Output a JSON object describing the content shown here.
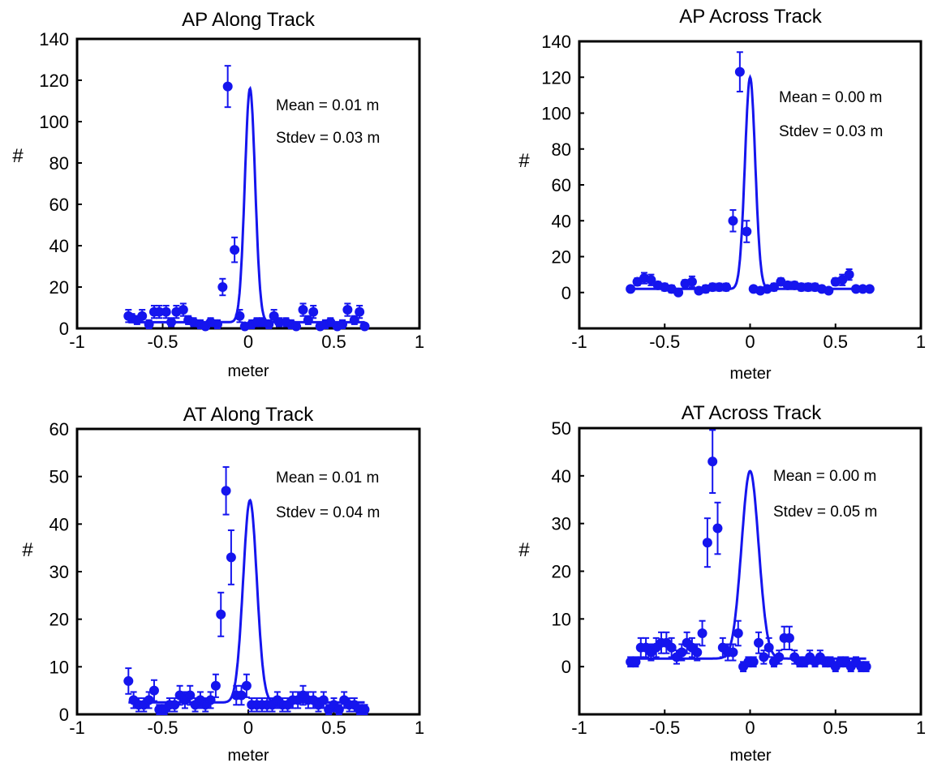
{
  "style": {
    "series_color": "#1515ee",
    "axis_color": "#000000",
    "background": "#ffffff"
  },
  "chart_data": [
    {
      "id": "ap-along",
      "type": "scatter",
      "title": "AP Along Track",
      "xlabel": "meter",
      "ylabel": "#",
      "xlim": [
        -1,
        1
      ],
      "ylim": [
        0,
        140
      ],
      "xticks": [
        -1,
        -0.5,
        0,
        0.5,
        1
      ],
      "xtick_labels": [
        "-1",
        "-0.5",
        "0",
        "0.5",
        "1"
      ],
      "yticks": [
        0,
        20,
        40,
        60,
        80,
        100,
        120,
        140
      ],
      "ytick_labels": [
        "0",
        "20",
        "40",
        "60",
        "80",
        "100",
        "120",
        "140"
      ],
      "annotations": [
        "Mean = 0.01 m",
        "Stdev = 0.03 m"
      ],
      "grid": false,
      "fit": {
        "mean": 0.01,
        "stdev": 0.03,
        "peak": 116,
        "baseline": 3
      },
      "x": [
        -0.7,
        -0.68,
        -0.65,
        -0.62,
        -0.58,
        -0.55,
        -0.52,
        -0.48,
        -0.45,
        -0.42,
        -0.38,
        -0.35,
        -0.32,
        -0.28,
        -0.25,
        -0.22,
        -0.18,
        -0.15,
        -0.12,
        -0.08,
        -0.05,
        -0.02,
        0.02,
        0.05,
        0.08,
        0.12,
        0.15,
        0.18,
        0.22,
        0.25,
        0.28,
        0.32,
        0.35,
        0.38,
        0.42,
        0.45,
        0.48,
        0.52,
        0.55,
        0.58,
        0.62,
        0.65,
        0.68
      ],
      "y": [
        6,
        5,
        4,
        6,
        2,
        8,
        8,
        8,
        3,
        8,
        9,
        4,
        3,
        2,
        1,
        3,
        2,
        20,
        117,
        38,
        6,
        1,
        2,
        3,
        3,
        2,
        6,
        3,
        3,
        2,
        1,
        9,
        4,
        8,
        1,
        2,
        3,
        1,
        2,
        9,
        4,
        8,
        1
      ],
      "errors": [
        3,
        2,
        2,
        3,
        2,
        3,
        3,
        3,
        2,
        3,
        3,
        2,
        2,
        2,
        1,
        2,
        2,
        4,
        10,
        6,
        3,
        1,
        2,
        2,
        2,
        2,
        3,
        2,
        2,
        2,
        1,
        3,
        2,
        3,
        1,
        2,
        2,
        1,
        2,
        3,
        2,
        3,
        1
      ]
    },
    {
      "id": "ap-across",
      "type": "scatter",
      "title": "AP Across Track",
      "xlabel": "meter",
      "ylabel": "#",
      "xlim": [
        -1,
        1
      ],
      "ylim": [
        -20,
        140
      ],
      "xticks": [
        -1,
        -0.5,
        0,
        0.5,
        1
      ],
      "xtick_labels": [
        "-1",
        "-0.5",
        "0",
        "0.5",
        "1"
      ],
      "yticks": [
        0,
        20,
        40,
        60,
        80,
        100,
        120,
        140
      ],
      "ytick_labels": [
        "0",
        "20",
        "40",
        "60",
        "80",
        "100",
        "120",
        "140"
      ],
      "annotations": [
        "Mean = 0.00 m",
        "Stdev = 0.03 m"
      ],
      "grid": false,
      "fit": {
        "mean": 0.0,
        "stdev": 0.03,
        "peak": 120,
        "baseline": 2
      },
      "x": [
        -0.7,
        -0.66,
        -0.62,
        -0.58,
        -0.54,
        -0.5,
        -0.46,
        -0.42,
        -0.38,
        -0.34,
        -0.3,
        -0.26,
        -0.22,
        -0.18,
        -0.14,
        -0.1,
        -0.06,
        -0.02,
        0.02,
        0.06,
        0.1,
        0.14,
        0.18,
        0.22,
        0.26,
        0.3,
        0.34,
        0.38,
        0.42,
        0.46,
        0.5,
        0.54,
        0.58,
        0.62,
        0.66,
        0.7
      ],
      "y": [
        2,
        6,
        8,
        7,
        4,
        3,
        2,
        0,
        5,
        6,
        1,
        2,
        3,
        3,
        3,
        40,
        123,
        34,
        2,
        1,
        2,
        3,
        6,
        4,
        4,
        3,
        3,
        3,
        2,
        1,
        6,
        7,
        10,
        2,
        2,
        2
      ],
      "errors": [
        1,
        2,
        3,
        3,
        2,
        2,
        2,
        1,
        2,
        3,
        1,
        2,
        2,
        2,
        2,
        6,
        11,
        6,
        1,
        1,
        1,
        2,
        2,
        2,
        2,
        2,
        2,
        2,
        1,
        1,
        2,
        3,
        3,
        1,
        1,
        1
      ]
    },
    {
      "id": "at-along",
      "type": "scatter",
      "title": "AT Along Track",
      "xlabel": "meter",
      "ylabel": "#",
      "xlim": [
        -1,
        1
      ],
      "ylim": [
        0,
        60
      ],
      "xticks": [
        -1,
        -0.5,
        0,
        0.5,
        1
      ],
      "xtick_labels": [
        "-1",
        "-0.5",
        "0",
        "0.5",
        "1"
      ],
      "yticks": [
        0,
        10,
        20,
        30,
        40,
        50,
        60
      ],
      "ytick_labels": [
        "0",
        "10",
        "20",
        "30",
        "40",
        "50",
        "60"
      ],
      "annotations": [
        "Mean = 0.01 m",
        "Stdev = 0.04 m"
      ],
      "grid": false,
      "fit": {
        "mean": 0.01,
        "stdev": 0.04,
        "peak": 45,
        "baseline": 2.5
      },
      "x": [
        -0.7,
        -0.67,
        -0.64,
        -0.61,
        -0.58,
        -0.55,
        -0.52,
        -0.49,
        -0.46,
        -0.43,
        -0.4,
        -0.37,
        -0.34,
        -0.31,
        -0.28,
        -0.25,
        -0.22,
        -0.19,
        -0.16,
        -0.13,
        -0.1,
        -0.07,
        -0.04,
        -0.01,
        0.02,
        0.05,
        0.08,
        0.11,
        0.14,
        0.17,
        0.2,
        0.23,
        0.26,
        0.29,
        0.32,
        0.35,
        0.38,
        0.41,
        0.44,
        0.47,
        0.5,
        0.53,
        0.56,
        0.59,
        0.62,
        0.65,
        0.68
      ],
      "y": [
        7,
        3,
        2,
        2,
        3,
        5,
        1,
        1,
        2,
        2,
        4,
        3,
        4,
        2,
        3,
        2,
        3,
        6,
        21,
        47,
        33,
        4,
        4,
        6,
        2,
        2,
        2,
        2,
        2,
        3,
        2,
        2,
        3,
        3,
        4,
        3,
        3,
        2,
        3,
        1,
        2,
        1,
        3,
        2,
        2,
        1,
        1
      ],
      "errors": [
        2.7,
        1.7,
        1.4,
        1.4,
        1.7,
        2.2,
        1,
        1,
        1.4,
        1.4,
        2,
        1.7,
        2,
        1.4,
        1.7,
        1.4,
        1.7,
        2.4,
        4.6,
        5,
        5.7,
        2,
        2,
        2.4,
        1.4,
        1.4,
        1.4,
        1.4,
        1.4,
        1.7,
        1.4,
        1.4,
        1.7,
        1.7,
        2,
        1.7,
        1.7,
        1.4,
        1.7,
        1,
        1.4,
        1,
        1.7,
        1.4,
        1.4,
        1,
        1
      ]
    },
    {
      "id": "at-across",
      "type": "scatter",
      "title": "AT Across Track",
      "xlabel": "meter",
      "ylabel": "#",
      "xlim": [
        -1,
        1
      ],
      "ylim": [
        -10,
        50
      ],
      "xticks": [
        -1,
        -0.5,
        0,
        0.5,
        1
      ],
      "xtick_labels": [
        "-1",
        "-0.5",
        "0",
        "0.5",
        "1"
      ],
      "yticks": [
        0,
        10,
        20,
        30,
        40,
        50
      ],
      "ytick_labels": [
        "0",
        "10",
        "20",
        "30",
        "40",
        "50"
      ],
      "annotations": [
        "Mean = 0.00 m",
        "Stdev = 0.05 m"
      ],
      "grid": false,
      "fit": {
        "mean": 0.0,
        "stdev": 0.05,
        "peak": 41,
        "baseline": 1.7
      },
      "x": [
        -0.7,
        -0.67,
        -0.64,
        -0.61,
        -0.58,
        -0.55,
        -0.52,
        -0.49,
        -0.46,
        -0.43,
        -0.4,
        -0.37,
        -0.34,
        -0.31,
        -0.28,
        -0.25,
        -0.22,
        -0.19,
        -0.16,
        -0.13,
        -0.1,
        -0.07,
        -0.04,
        -0.01,
        0.02,
        0.05,
        0.08,
        0.11,
        0.14,
        0.17,
        0.2,
        0.23,
        0.26,
        0.29,
        0.32,
        0.35,
        0.38,
        0.41,
        0.44,
        0.47,
        0.5,
        0.53,
        0.56,
        0.59,
        0.62,
        0.65,
        0.68
      ],
      "y": [
        1,
        1,
        4,
        4,
        3,
        4,
        5,
        5,
        4,
        2,
        3,
        5,
        4,
        3,
        7,
        26,
        43,
        29,
        4,
        3,
        3,
        7,
        0,
        1,
        1,
        5,
        2,
        4,
        1,
        2,
        6,
        6,
        2,
        1,
        1,
        2,
        1,
        2,
        1,
        1,
        0,
        1,
        1,
        0,
        1,
        0,
        0
      ],
      "errors": [
        1,
        1,
        2,
        2,
        1.7,
        2,
        2.2,
        2.2,
        2,
        1.4,
        1.7,
        2.2,
        2,
        1.7,
        2.6,
        5.1,
        6.6,
        5.4,
        2,
        1.7,
        1.7,
        2.6,
        1,
        1,
        1,
        2.2,
        1.4,
        2,
        1,
        1.4,
        2.4,
        2.4,
        1.4,
        1,
        1,
        1.4,
        1,
        1.4,
        1,
        1,
        1,
        1,
        1,
        1,
        1,
        1,
        1
      ]
    }
  ]
}
